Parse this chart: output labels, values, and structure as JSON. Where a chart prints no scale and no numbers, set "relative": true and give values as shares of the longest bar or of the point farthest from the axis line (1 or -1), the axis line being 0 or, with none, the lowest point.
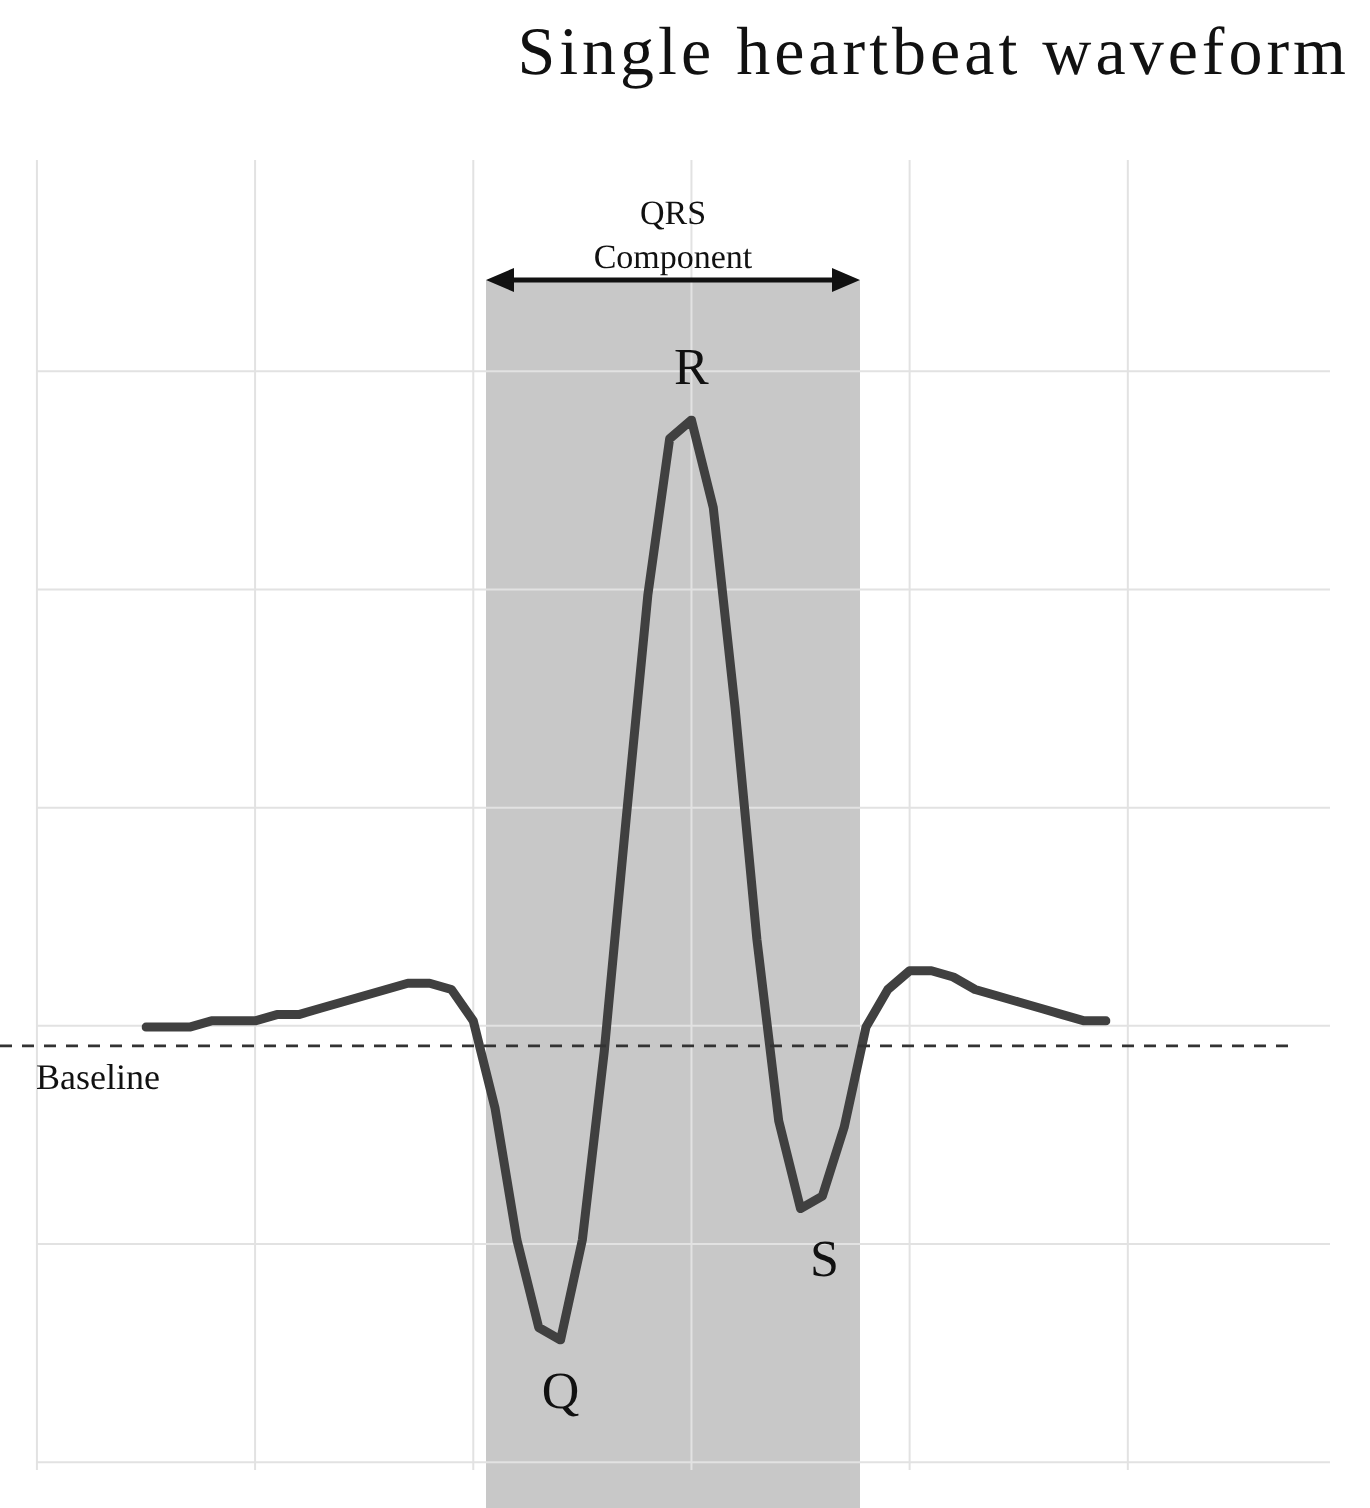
{
  "chart_data": {
    "type": "line",
    "title": "Single heartbeat waveform",
    "relative": true,
    "grid": true,
    "legend": false,
    "marker": "none",
    "line_style": "solid",
    "categories": [
      null,
      null,
      null,
      null,
      null,
      null,
      null,
      null,
      null,
      null,
      null,
      null,
      null,
      null,
      null,
      null,
      null,
      null,
      null,
      null,
      null,
      null,
      null,
      null,
      null,
      null,
      null,
      null,
      null,
      null,
      null,
      null,
      null,
      null,
      null,
      null,
      null,
      null,
      null,
      null,
      null,
      null,
      null,
      null,
      null
    ],
    "series": [
      {
        "color": "#404040",
        "values": [
          0.03,
          0.03,
          0.03,
          0.04,
          0.04,
          0.04,
          0.05,
          0.05,
          0.06,
          0.07,
          0.08,
          0.09,
          0.1,
          0.1,
          0.09,
          0.04,
          -0.1,
          -0.31,
          -0.45,
          -0.47,
          -0.31,
          -0.01,
          0.36,
          0.72,
          0.97,
          1.0,
          0.86,
          0.54,
          0.17,
          -0.12,
          -0.26,
          -0.24,
          -0.13,
          0.03,
          0.09,
          0.12,
          0.12,
          0.11,
          0.09,
          0.08,
          0.07,
          0.06,
          0.05,
          0.04,
          0.04
        ]
      }
    ],
    "ref_lines": [
      {
        "axis": "y",
        "value": 0,
        "label": "Baseline",
        "line_style": "dashed",
        "color": "#333333"
      }
    ],
    "annotations": [
      "QRS Component",
      {
        "text": "R",
        "y": 1.0
      },
      {
        "text": "Q",
        "y": -0.47
      },
      {
        "text": "S",
        "y": -0.26
      }
    ]
  }
}
